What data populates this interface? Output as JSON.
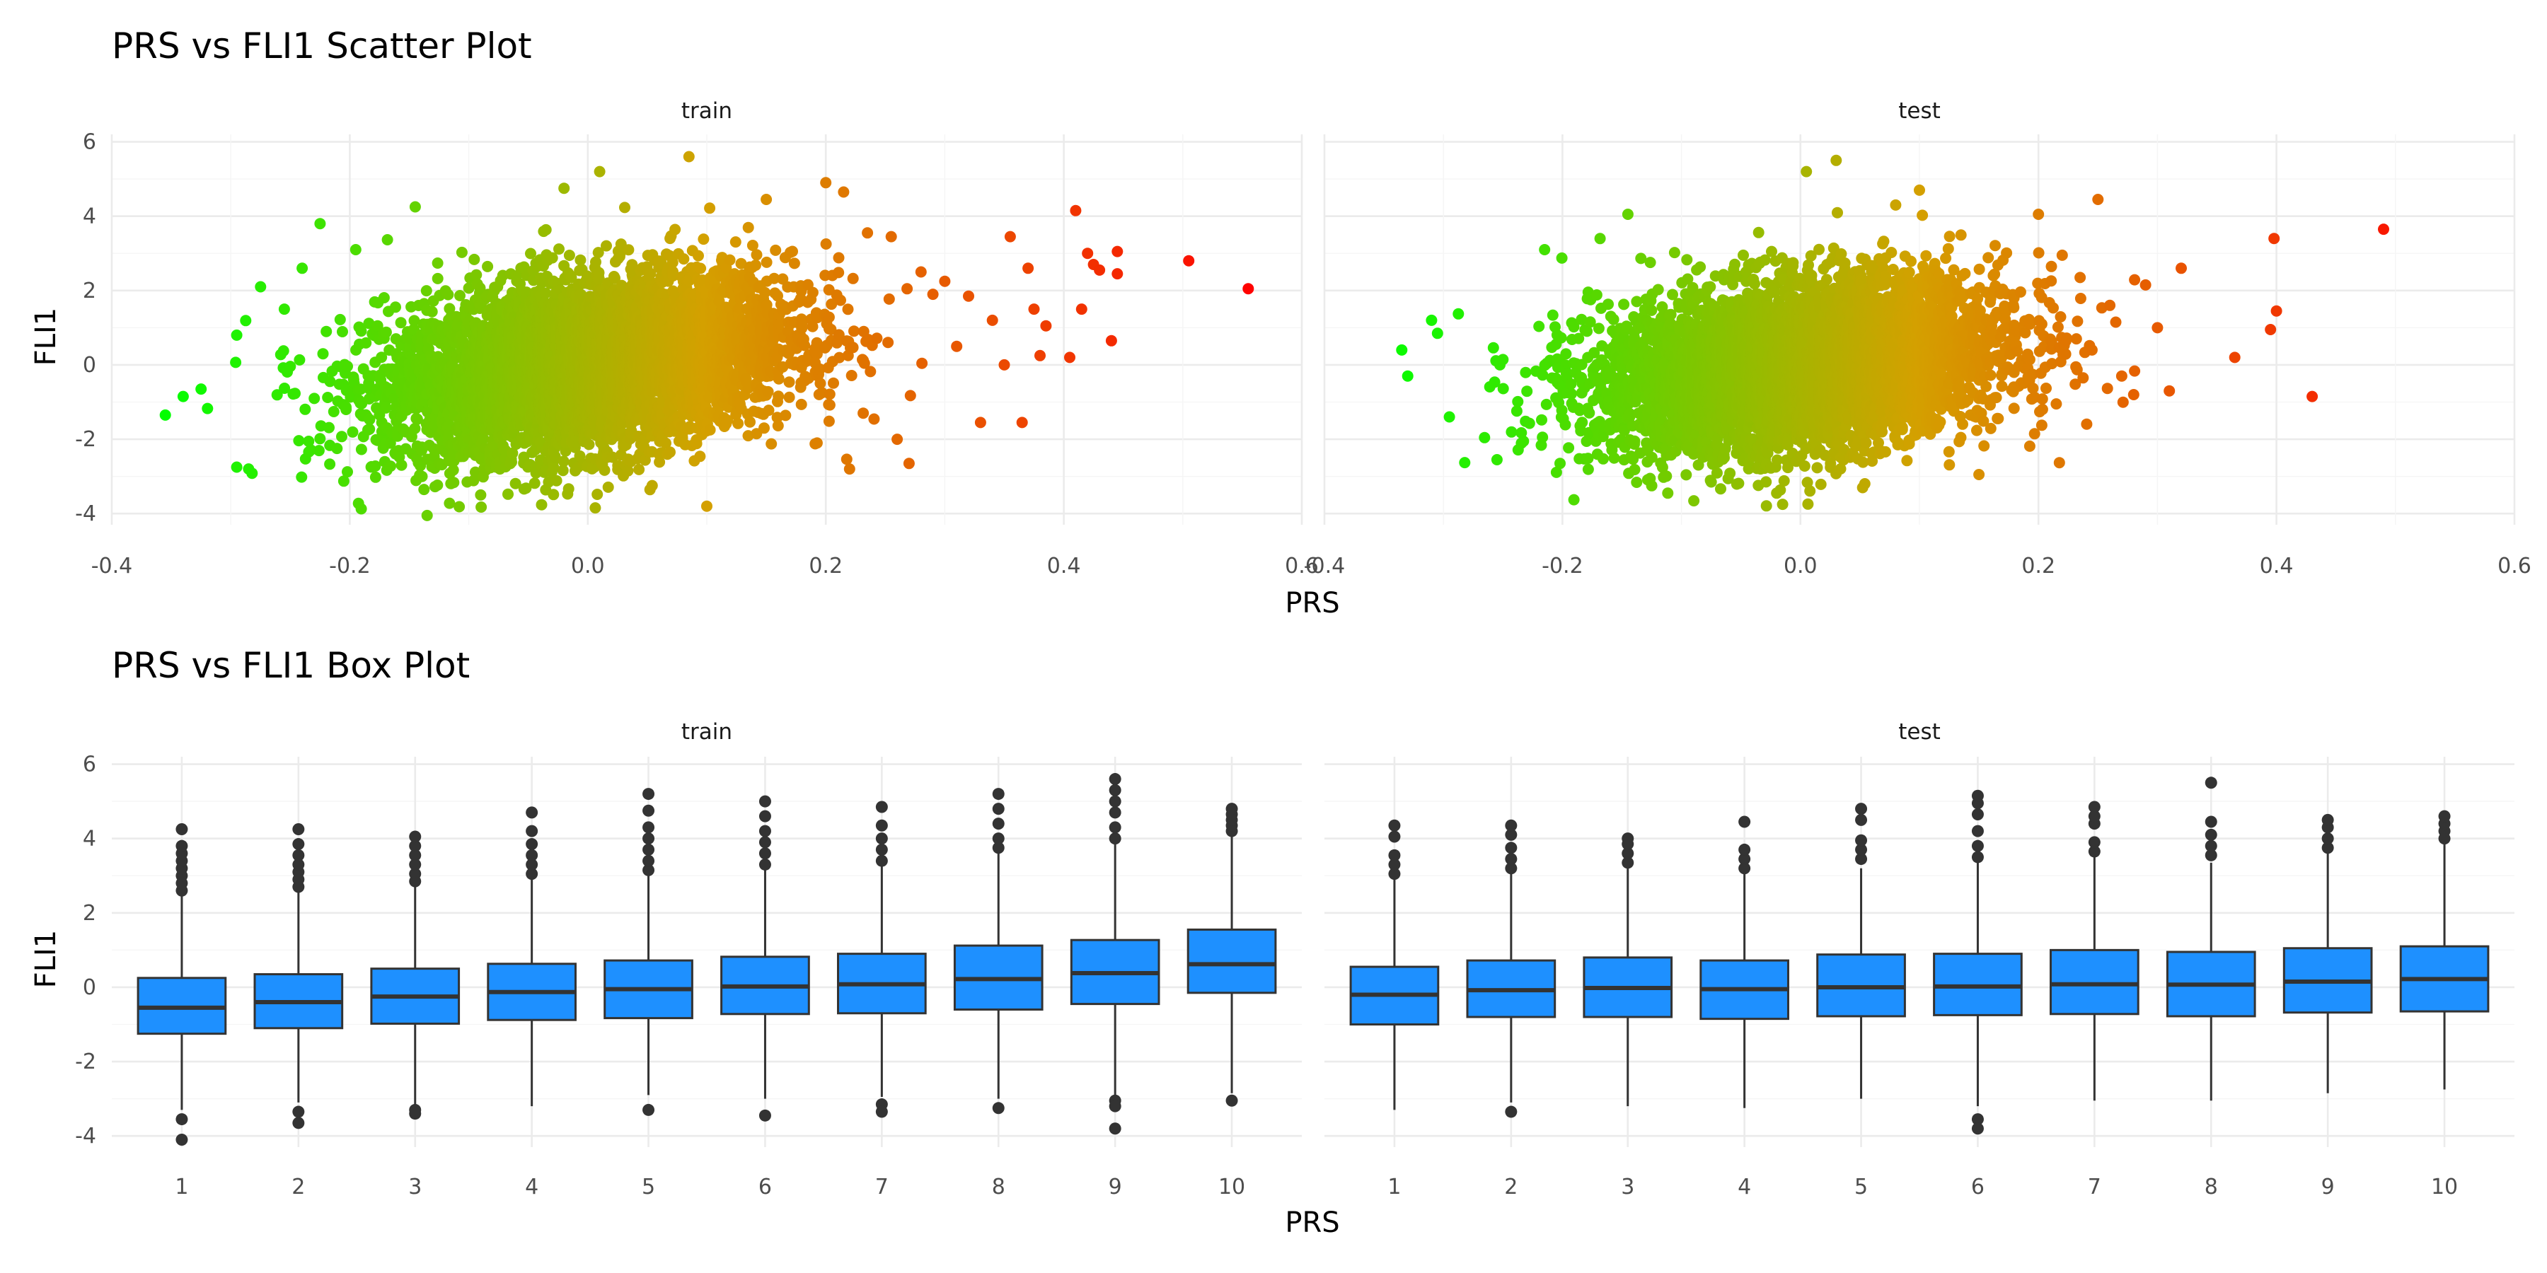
{
  "scatter": {
    "title": "PRS vs FLI1 Scatter Plot",
    "xlabel": "PRS",
    "ylabel": "FLI1"
  },
  "box": {
    "title": "PRS vs FLI1 Box Plot",
    "xlabel": "PRS",
    "ylabel": "FLI1"
  },
  "chart_data": [
    {
      "type": "scatter",
      "title": "PRS vs FLI1 Scatter Plot",
      "xlabel": "PRS",
      "ylabel": "FLI1",
      "xlim": [
        -0.4,
        0.6
      ],
      "ylim": [
        -4.3,
        6.2
      ],
      "x_ticks": [
        "-0.4",
        "-0.2",
        "0.0",
        "0.2",
        "0.4",
        "0.6"
      ],
      "y_ticks": [
        "-4",
        "-2",
        "0",
        "2",
        "4",
        "6"
      ],
      "color_gradient": {
        "low": "#00ff00",
        "mid": "#d4a000",
        "high": "#ff0000",
        "by": "x"
      },
      "grid": true,
      "legend": "none",
      "panels": [
        {
          "name": "train",
          "cloud": {
            "center_x": 0.0,
            "spread_x": 0.085,
            "center_y": 0.0,
            "spread_y": 1.2,
            "correlation": 0.3
          },
          "points": [
            [
              -0.355,
              -1.35
            ],
            [
              -0.34,
              -0.85
            ],
            [
              -0.325,
              -0.65
            ],
            [
              -0.295,
              -2.75
            ],
            [
              -0.285,
              -2.8
            ],
            [
              -0.295,
              0.8
            ],
            [
              -0.275,
              2.1
            ],
            [
              -0.255,
              1.5
            ],
            [
              -0.24,
              2.6
            ],
            [
              -0.225,
              3.8
            ],
            [
              -0.195,
              3.1
            ],
            [
              -0.145,
              4.25
            ],
            [
              -0.135,
              -4.05
            ],
            [
              -0.09,
              -3.5
            ],
            [
              -0.02,
              4.75
            ],
            [
              0.01,
              5.2
            ],
            [
              0.085,
              5.6
            ],
            [
              0.1,
              -3.8
            ],
            [
              0.15,
              4.45
            ],
            [
              0.2,
              4.9
            ],
            [
              0.215,
              4.65
            ],
            [
              0.22,
              -2.8
            ],
            [
              0.235,
              3.55
            ],
            [
              0.255,
              3.45
            ],
            [
              0.26,
              -2.0
            ],
            [
              0.27,
              -2.65
            ],
            [
              0.28,
              2.5
            ],
            [
              0.29,
              1.9
            ],
            [
              0.3,
              2.25
            ],
            [
              0.31,
              0.5
            ],
            [
              0.32,
              1.85
            ],
            [
              0.33,
              -1.55
            ],
            [
              0.34,
              1.2
            ],
            [
              0.35,
              0.0
            ],
            [
              0.355,
              3.45
            ],
            [
              0.365,
              -1.55
            ],
            [
              0.37,
              2.6
            ],
            [
              0.375,
              1.5
            ],
            [
              0.38,
              0.25
            ],
            [
              0.385,
              1.05
            ],
            [
              0.405,
              0.2
            ],
            [
              0.41,
              4.15
            ],
            [
              0.415,
              1.5
            ],
            [
              0.42,
              3.0
            ],
            [
              0.425,
              2.7
            ],
            [
              0.43,
              2.55
            ],
            [
              0.44,
              0.65
            ],
            [
              0.445,
              3.05
            ],
            [
              0.445,
              2.45
            ],
            [
              0.505,
              2.8
            ],
            [
              0.555,
              2.05
            ]
          ]
        },
        {
          "name": "test",
          "cloud": {
            "center_x": 0.0,
            "spread_x": 0.085,
            "center_y": 0.0,
            "spread_y": 1.15,
            "correlation": 0.25
          },
          "points": [
            [
              -0.335,
              0.4
            ],
            [
              -0.33,
              -0.3
            ],
            [
              -0.31,
              1.2
            ],
            [
              -0.305,
              0.85
            ],
            [
              -0.295,
              -1.4
            ],
            [
              -0.255,
              -2.55
            ],
            [
              -0.215,
              3.1
            ],
            [
              -0.145,
              4.05
            ],
            [
              -0.125,
              -3.25
            ],
            [
              -0.075,
              -3.15
            ],
            [
              -0.02,
              -3.45
            ],
            [
              -0.015,
              -3.75
            ],
            [
              0.005,
              5.2
            ],
            [
              0.03,
              5.5
            ],
            [
              0.08,
              4.3
            ],
            [
              0.1,
              4.7
            ],
            [
              0.15,
              -2.95
            ],
            [
              0.2,
              4.05
            ],
            [
              0.215,
              -1.05
            ],
            [
              0.22,
              2.95
            ],
            [
              0.235,
              2.35
            ],
            [
              0.245,
              0.4
            ],
            [
              0.25,
              4.45
            ],
            [
              0.26,
              1.6
            ],
            [
              0.265,
              1.15
            ],
            [
              0.27,
              -0.3
            ],
            [
              0.28,
              -0.8
            ],
            [
              0.29,
              2.15
            ],
            [
              0.3,
              1.0
            ],
            [
              0.31,
              -0.7
            ],
            [
              0.32,
              2.6
            ],
            [
              0.365,
              0.2
            ],
            [
              0.395,
              0.95
            ],
            [
              0.398,
              3.4
            ],
            [
              0.4,
              1.45
            ],
            [
              0.43,
              -0.85
            ],
            [
              0.49,
              3.65
            ]
          ]
        }
      ]
    },
    {
      "type": "box",
      "title": "PRS vs FLI1 Box Plot",
      "xlabel": "PRS",
      "ylabel": "FLI1",
      "ylim": [
        -4.3,
        6.2
      ],
      "categories": [
        "1",
        "2",
        "3",
        "4",
        "5",
        "6",
        "7",
        "8",
        "9",
        "10"
      ],
      "y_ticks": [
        "-4",
        "-2",
        "0",
        "2",
        "4",
        "6"
      ],
      "fill": "#1e90ff",
      "grid": true,
      "legend": "none",
      "panels": [
        {
          "name": "train",
          "boxes": [
            {
              "q1": -1.25,
              "median": -0.55,
              "q3": 0.25,
              "low": -3.3,
              "high": 2.5,
              "outliers": [
                2.6,
                2.8,
                3.0,
                3.2,
                3.4,
                3.6,
                3.8,
                4.25,
                -3.55,
                -4.1
              ]
            },
            {
              "q1": -1.1,
              "median": -0.4,
              "q3": 0.35,
              "low": -3.1,
              "high": 2.6,
              "outliers": [
                2.7,
                2.9,
                3.1,
                3.3,
                3.55,
                3.85,
                4.25,
                -3.35,
                -3.65
              ]
            },
            {
              "q1": -0.98,
              "median": -0.25,
              "q3": 0.5,
              "low": -3.2,
              "high": 2.75,
              "outliers": [
                2.85,
                3.05,
                3.3,
                3.55,
                3.8,
                4.05,
                -3.3,
                -3.4
              ]
            },
            {
              "q1": -0.88,
              "median": -0.13,
              "q3": 0.63,
              "low": -3.2,
              "high": 2.95,
              "outliers": [
                3.05,
                3.3,
                3.55,
                3.85,
                4.2,
                4.7
              ]
            },
            {
              "q1": -0.83,
              "median": -0.05,
              "q3": 0.72,
              "low": -2.9,
              "high": 3.05,
              "outliers": [
                3.15,
                3.4,
                3.7,
                4.0,
                4.3,
                4.75,
                5.2,
                -3.3
              ]
            },
            {
              "q1": -0.72,
              "median": 0.02,
              "q3": 0.82,
              "low": -3.0,
              "high": 3.15,
              "outliers": [
                3.3,
                3.6,
                3.9,
                4.2,
                4.6,
                5.0,
                -3.45
              ]
            },
            {
              "q1": -0.7,
              "median": 0.08,
              "q3": 0.9,
              "low": -2.95,
              "high": 3.25,
              "outliers": [
                3.4,
                3.7,
                4.0,
                4.35,
                4.85,
                -3.15,
                -3.35
              ]
            },
            {
              "q1": -0.6,
              "median": 0.22,
              "q3": 1.12,
              "low": -3.0,
              "high": 3.6,
              "outliers": [
                3.75,
                4.0,
                4.4,
                4.8,
                5.2,
                -3.25
              ]
            },
            {
              "q1": -0.45,
              "median": 0.38,
              "q3": 1.27,
              "low": -2.95,
              "high": 3.85,
              "outliers": [
                4.0,
                4.3,
                4.7,
                5.0,
                5.3,
                5.6,
                -3.05,
                -3.2,
                -3.8
              ]
            },
            {
              "q1": -0.15,
              "median": 0.62,
              "q3": 1.55,
              "low": -2.85,
              "high": 4.1,
              "outliers": [
                4.2,
                4.35,
                4.5,
                4.65,
                4.8,
                -3.05
              ]
            }
          ]
        },
        {
          "name": "test",
          "boxes": [
            {
              "q1": -1.0,
              "median": -0.2,
              "q3": 0.55,
              "low": -3.3,
              "high": 2.95,
              "outliers": [
                3.05,
                3.3,
                3.55,
                4.05,
                4.35
              ]
            },
            {
              "q1": -0.8,
              "median": -0.08,
              "q3": 0.72,
              "low": -3.1,
              "high": 3.05,
              "outliers": [
                3.2,
                3.45,
                3.75,
                4.1,
                4.35,
                -3.35
              ]
            },
            {
              "q1": -0.8,
              "median": -0.02,
              "q3": 0.8,
              "low": -3.2,
              "high": 3.2,
              "outliers": [
                3.35,
                3.6,
                3.85,
                4.0
              ]
            },
            {
              "q1": -0.85,
              "median": -0.05,
              "q3": 0.72,
              "low": -3.25,
              "high": 3.05,
              "outliers": [
                3.2,
                3.45,
                3.7,
                4.45
              ]
            },
            {
              "q1": -0.78,
              "median": 0.0,
              "q3": 0.88,
              "low": -3.0,
              "high": 3.2,
              "outliers": [
                3.45,
                3.7,
                3.95,
                4.5,
                4.8
              ]
            },
            {
              "q1": -0.75,
              "median": 0.02,
              "q3": 0.9,
              "low": -3.2,
              "high": 3.35,
              "outliers": [
                3.5,
                3.8,
                4.2,
                4.65,
                4.95,
                5.15,
                -3.55,
                -3.8
              ]
            },
            {
              "q1": -0.72,
              "median": 0.08,
              "q3": 1.0,
              "low": -3.05,
              "high": 3.5,
              "outliers": [
                3.65,
                3.9,
                4.4,
                4.6,
                4.85
              ]
            },
            {
              "q1": -0.78,
              "median": 0.07,
              "q3": 0.95,
              "low": -3.05,
              "high": 3.35,
              "outliers": [
                3.55,
                3.8,
                4.1,
                4.45,
                5.5
              ]
            },
            {
              "q1": -0.68,
              "median": 0.15,
              "q3": 1.05,
              "low": -2.85,
              "high": 3.6,
              "outliers": [
                3.75,
                4.0,
                4.3,
                4.5
              ]
            },
            {
              "q1": -0.65,
              "median": 0.22,
              "q3": 1.1,
              "low": -2.75,
              "high": 3.85,
              "outliers": [
                4.0,
                4.2,
                4.4,
                4.6
              ]
            }
          ]
        }
      ]
    }
  ]
}
